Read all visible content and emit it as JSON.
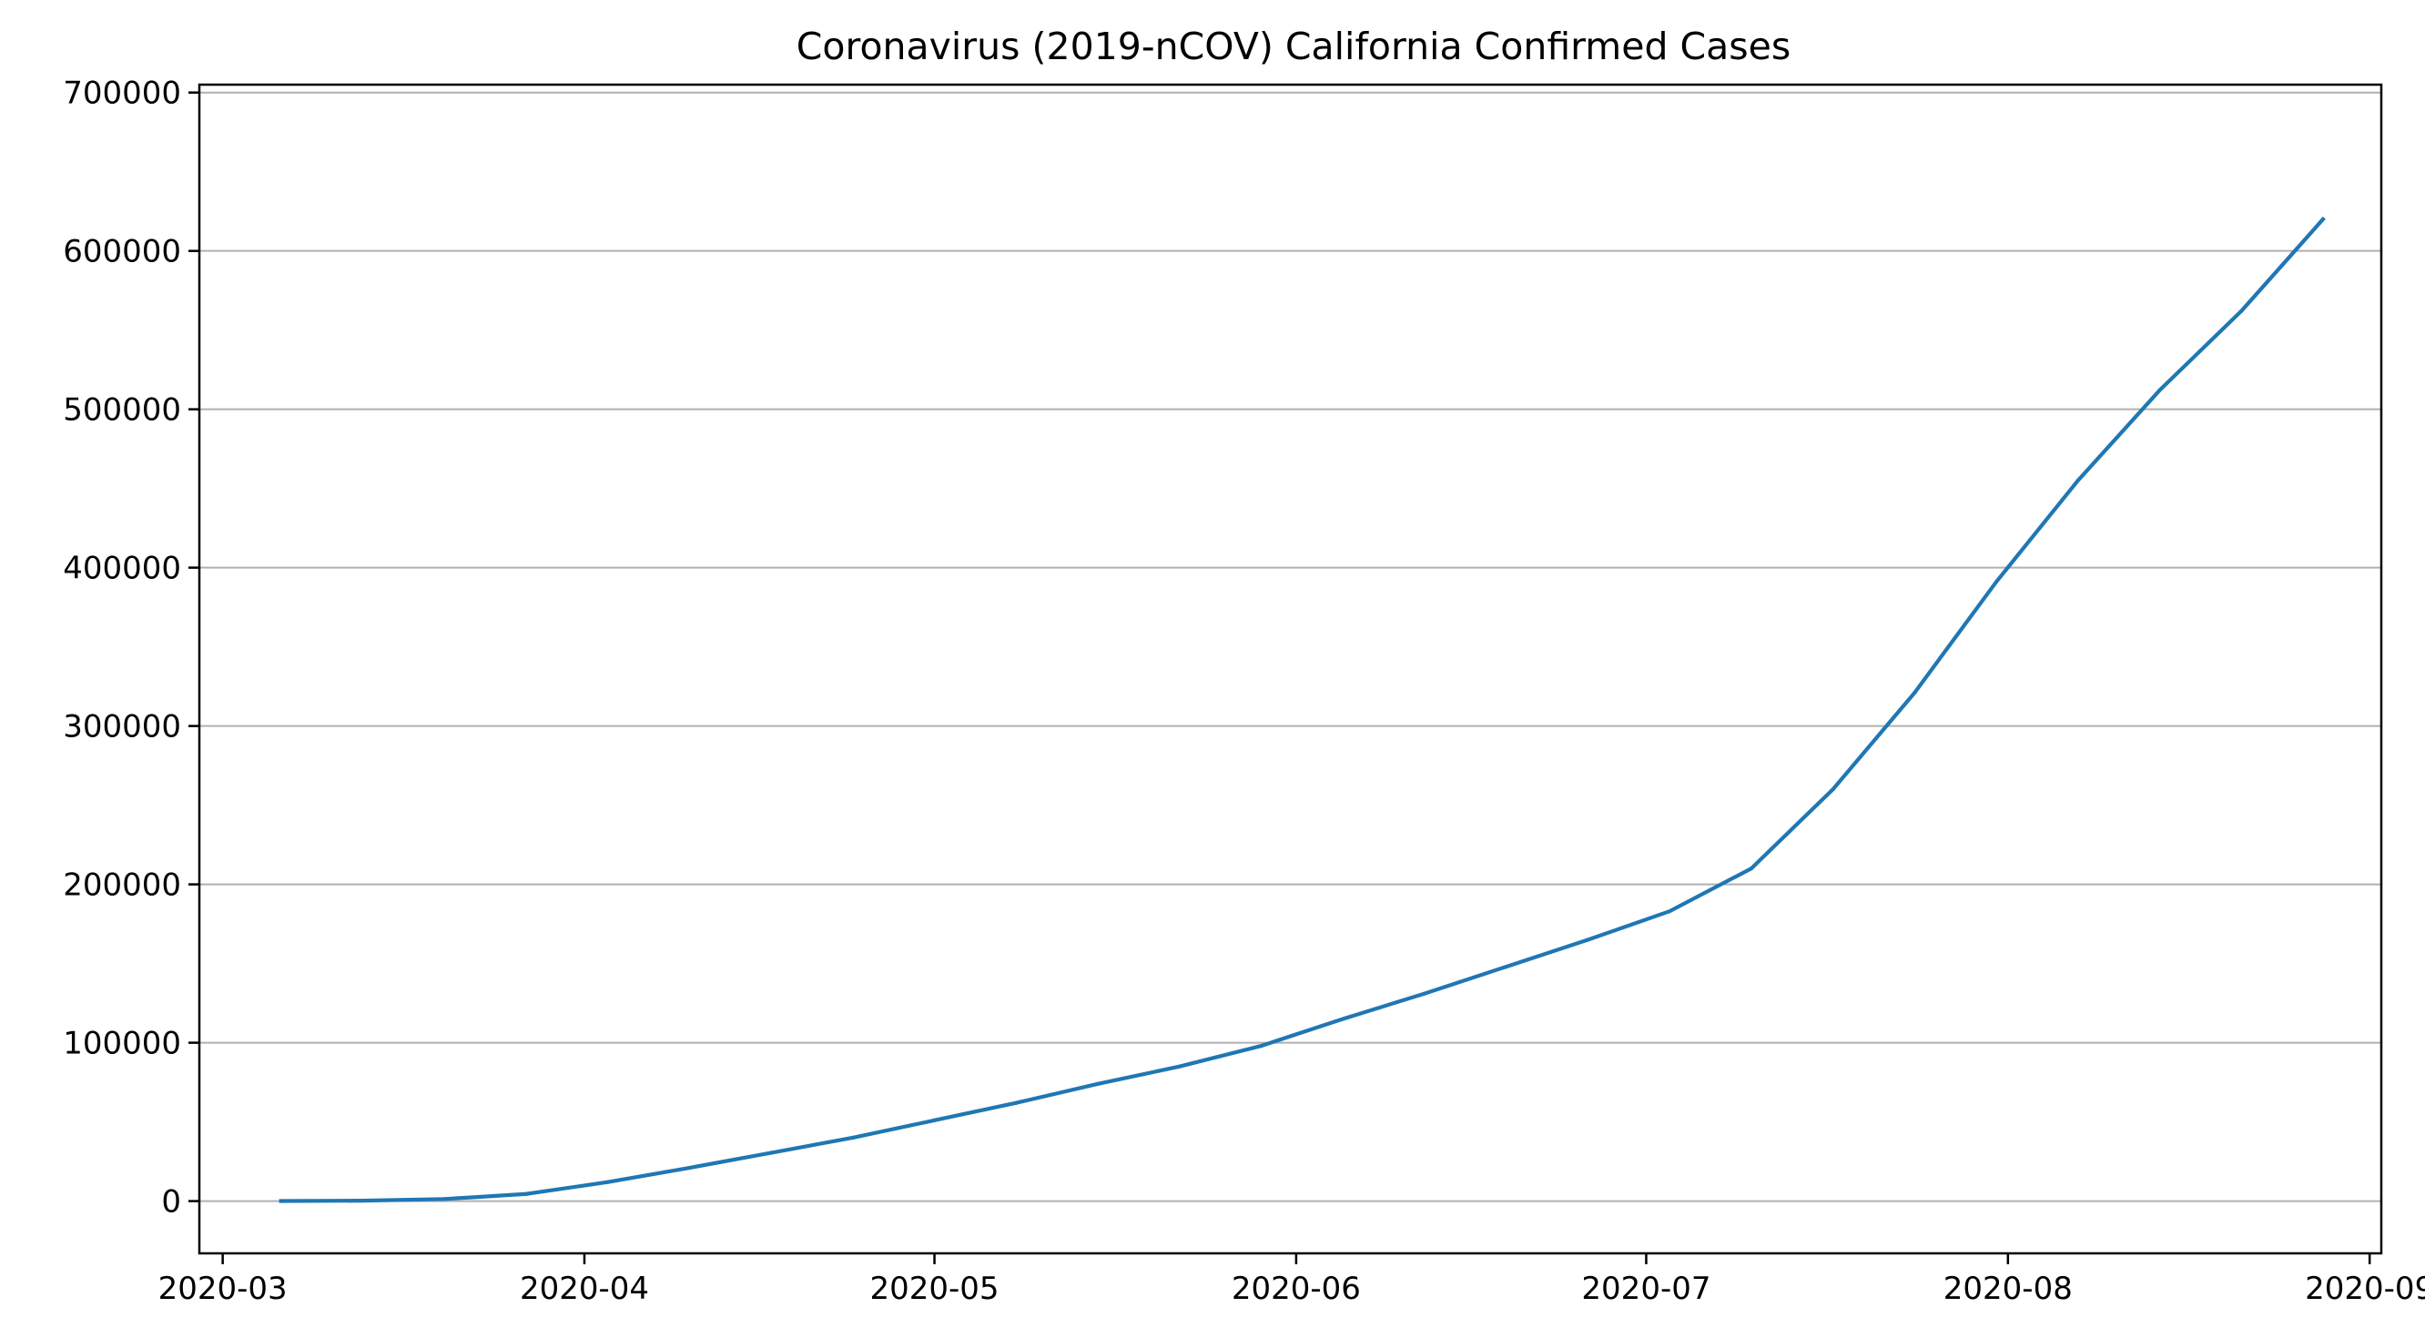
{
  "chart_data": {
    "type": "line",
    "title": "Coronavirus (2019-nCOV) California Confirmed Cases",
    "xlabel": "",
    "ylabel": "",
    "x_axis_type": "date",
    "xlim": [
      "2020-02-28",
      "2020-09-02"
    ],
    "ylim": [
      -33000,
      705000
    ],
    "x_ticks": [
      "2020-03-01",
      "2020-04-01",
      "2020-05-01",
      "2020-06-01",
      "2020-07-01",
      "2020-08-01",
      "2020-09-01"
    ],
    "x_tick_labels": [
      "2020-03",
      "2020-04",
      "2020-05",
      "2020-06",
      "2020-07",
      "2020-08",
      "2020-09"
    ],
    "y_ticks": [
      0,
      100000,
      200000,
      300000,
      400000,
      500000,
      600000,
      700000
    ],
    "y_tick_labels": [
      "0",
      "100000",
      "200000",
      "300000",
      "400000",
      "500000",
      "600000",
      "700000"
    ],
    "grid": "horizontal",
    "legend": "none",
    "series": [
      {
        "color": "#1f77b4",
        "x": [
          "2020-03-06",
          "2020-03-13",
          "2020-03-20",
          "2020-03-27",
          "2020-04-03",
          "2020-04-10",
          "2020-04-17",
          "2020-04-24",
          "2020-05-01",
          "2020-05-08",
          "2020-05-15",
          "2020-05-22",
          "2020-05-29",
          "2020-06-05",
          "2020-06-12",
          "2020-06-19",
          "2020-06-26",
          "2020-07-03",
          "2020-07-10",
          "2020-07-17",
          "2020-07-24",
          "2020-07-31",
          "2020-08-07",
          "2020-08-14",
          "2020-08-21",
          "2020-08-28"
        ],
        "values": [
          60,
          250,
          1300,
          4500,
          12000,
          21000,
          30500,
          40000,
          51000,
          62000,
          74000,
          85000,
          98000,
          115000,
          131000,
          148000,
          165000,
          183000,
          210000,
          260000,
          321000,
          391000,
          455000,
          512000,
          562000,
          620000
        ]
      }
    ]
  }
}
